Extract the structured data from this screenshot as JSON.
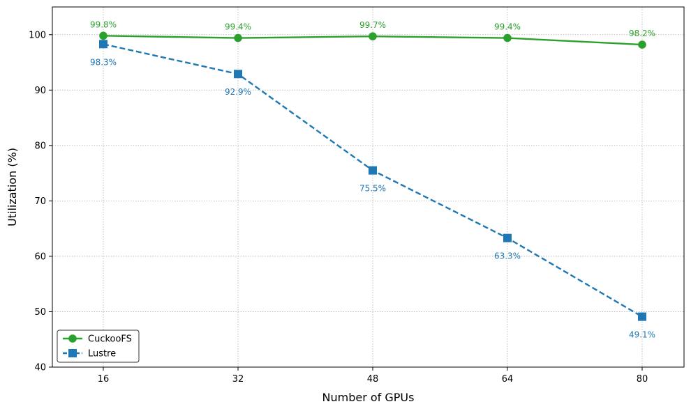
{
  "chart_data": {
    "type": "line",
    "title": "",
    "xlabel": "Number of GPUs",
    "ylabel": "Utilization (%)",
    "x": [
      16,
      32,
      48,
      64,
      80
    ],
    "ylim": [
      40,
      105
    ],
    "yticks": [
      40,
      50,
      60,
      70,
      80,
      90,
      100
    ],
    "grid": true,
    "legend_position": "lower-left",
    "series": [
      {
        "name": "CuckooFS",
        "values": [
          99.8,
          99.4,
          99.7,
          99.4,
          98.2
        ],
        "labels": [
          "99.8%",
          "99.4%",
          "99.7%",
          "99.4%",
          "98.2%"
        ],
        "color": "#2ca02c",
        "marker": "circle",
        "line_style": "solid",
        "label_position": "above"
      },
      {
        "name": "Lustre",
        "values": [
          98.3,
          92.9,
          75.5,
          63.3,
          49.1
        ],
        "labels": [
          "98.3%",
          "92.9%",
          "75.5%",
          "63.3%",
          "49.1%"
        ],
        "color": "#1f77b4",
        "marker": "square",
        "line_style": "dashed",
        "label_position": "below"
      }
    ]
  }
}
